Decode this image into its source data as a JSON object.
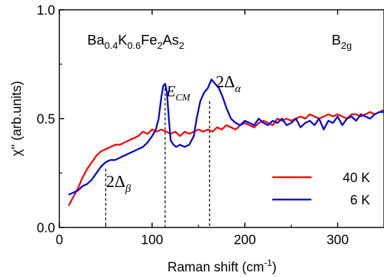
{
  "chart_data": {
    "type": "line",
    "xlabel": "Raman shift (cm",
    "xlabel_sup": "-1",
    "xlabel_end": ")",
    "ylabel": "χ'' (arb.units)",
    "xlim": [
      0,
      350
    ],
    "ylim": [
      0,
      1.0
    ],
    "xticks": [
      0,
      100,
      200,
      300
    ],
    "xtick_labels": [
      "0",
      "100",
      "200",
      "300"
    ],
    "yticks": [
      0,
      0.5,
      1.0
    ],
    "ytick_labels": [
      "0.0",
      "0.5",
      "1.0"
    ],
    "grid": false,
    "legend_position": "bottom-right",
    "annotations": {
      "compound": {
        "p1": "Ba",
        "s1": "0.4",
        "p2": "K",
        "s2": "0.6",
        "p3": "Fe",
        "s3": "2",
        "p4": "As",
        "s4": "2"
      },
      "symmetry": {
        "main": "B",
        "sub": "2g"
      },
      "cm_peak": {
        "main": "E",
        "sub": "CM"
      },
      "alpha_gap": {
        "main": "2Δ",
        "sub": "α"
      },
      "beta_gap": {
        "main": "2Δ",
        "sub": "β"
      }
    },
    "markers": [
      {
        "name": "beta",
        "x": 50,
        "y": 0.27
      },
      {
        "name": "cm",
        "x": 114,
        "y": 0.64
      },
      {
        "name": "alpha",
        "x": 162,
        "y": 0.58
      }
    ],
    "series": [
      {
        "name": "40 K",
        "color": "#ff0000",
        "x": [
          10,
          15,
          20,
          25,
          30,
          35,
          40,
          45,
          50,
          55,
          60,
          65,
          70,
          75,
          80,
          85,
          90,
          95,
          100,
          105,
          110,
          115,
          120,
          125,
          130,
          135,
          140,
          145,
          150,
          155,
          160,
          165,
          170,
          175,
          180,
          185,
          190,
          195,
          200,
          205,
          210,
          215,
          220,
          225,
          230,
          235,
          240,
          245,
          250,
          255,
          260,
          265,
          270,
          275,
          280,
          285,
          290,
          295,
          300,
          305,
          310,
          315,
          320,
          325,
          330,
          335,
          340,
          345,
          350
        ],
        "values": [
          0.1,
          0.14,
          0.18,
          0.23,
          0.27,
          0.3,
          0.33,
          0.35,
          0.36,
          0.37,
          0.38,
          0.38,
          0.39,
          0.4,
          0.41,
          0.42,
          0.44,
          0.43,
          0.45,
          0.44,
          0.45,
          0.44,
          0.43,
          0.44,
          0.42,
          0.44,
          0.43,
          0.44,
          0.45,
          0.44,
          0.45,
          0.44,
          0.46,
          0.45,
          0.47,
          0.46,
          0.45,
          0.47,
          0.48,
          0.47,
          0.46,
          0.48,
          0.49,
          0.48,
          0.47,
          0.5,
          0.49,
          0.5,
          0.49,
          0.5,
          0.51,
          0.5,
          0.52,
          0.51,
          0.5,
          0.51,
          0.52,
          0.51,
          0.52,
          0.51,
          0.5,
          0.52,
          0.52,
          0.51,
          0.52,
          0.53,
          0.52,
          0.53,
          0.54
        ]
      },
      {
        "name": "6 K",
        "color": "#0000dd",
        "x": [
          10,
          15,
          20,
          25,
          30,
          35,
          40,
          45,
          50,
          55,
          60,
          65,
          70,
          75,
          80,
          85,
          90,
          95,
          100,
          104,
          107,
          110,
          112,
          114,
          116,
          118,
          120,
          123,
          126,
          130,
          135,
          140,
          145,
          148,
          152,
          156,
          160,
          164,
          168,
          172,
          176,
          180,
          185,
          190,
          195,
          200,
          205,
          210,
          215,
          220,
          225,
          230,
          235,
          240,
          245,
          250,
          255,
          260,
          265,
          270,
          275,
          280,
          285,
          290,
          295,
          300,
          305,
          310,
          315,
          320,
          325,
          330,
          335,
          340,
          345,
          350
        ],
        "values": [
          0.15,
          0.16,
          0.17,
          0.19,
          0.2,
          0.22,
          0.25,
          0.28,
          0.3,
          0.31,
          0.31,
          0.32,
          0.33,
          0.34,
          0.35,
          0.36,
          0.37,
          0.39,
          0.42,
          0.45,
          0.5,
          0.6,
          0.65,
          0.66,
          0.62,
          0.5,
          0.4,
          0.38,
          0.37,
          0.38,
          0.37,
          0.38,
          0.42,
          0.5,
          0.58,
          0.62,
          0.64,
          0.68,
          0.66,
          0.64,
          0.6,
          0.55,
          0.5,
          0.48,
          0.47,
          0.49,
          0.48,
          0.47,
          0.5,
          0.48,
          0.47,
          0.49,
          0.48,
          0.5,
          0.47,
          0.48,
          0.5,
          0.46,
          0.48,
          0.49,
          0.47,
          0.5,
          0.45,
          0.49,
          0.48,
          0.51,
          0.47,
          0.5,
          0.51,
          0.49,
          0.52,
          0.51,
          0.5,
          0.52,
          0.53,
          0.53
        ]
      }
    ]
  }
}
